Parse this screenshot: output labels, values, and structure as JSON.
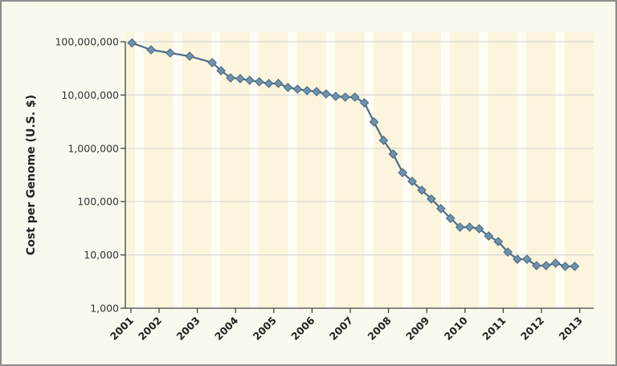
{
  "chart_data": {
    "type": "line",
    "title": "",
    "xlabel": "",
    "ylabel": "Cost per Genome (U.S. $)",
    "yscale": "log",
    "ylim": [
      1000,
      100000000
    ],
    "xlim": [
      2001,
      2013.35
    ],
    "yticks": [
      1000,
      10000,
      100000,
      1000000,
      10000000,
      100000000
    ],
    "ytick_labels": [
      "1,000",
      "10,000",
      "100,000",
      "1,000,000",
      "10,000,000",
      "100,000,000"
    ],
    "xticks": [
      "2001",
      "2002",
      "2003",
      "2004",
      "2005",
      "2006",
      "2007",
      "2008",
      "2009",
      "2010",
      "2011",
      "2012",
      "2013"
    ],
    "grid": "horizontal",
    "background": "alternating pale-yellow and white vertical bands",
    "series": [
      {
        "color": "#4f6e86",
        "marker": "diamond",
        "marker_color": "#6f93ad",
        "x": [
          2001.29,
          2001.79,
          2002.29,
          2002.8,
          2003.39,
          2003.62,
          2003.87,
          2004.12,
          2004.37,
          2004.62,
          2004.87,
          2005.12,
          2005.37,
          2005.62,
          2005.87,
          2006.12,
          2006.37,
          2006.62,
          2006.87,
          2007.12,
          2007.37,
          2007.62,
          2007.87,
          2008.12,
          2008.37,
          2008.62,
          2008.87,
          2009.12,
          2009.37,
          2009.62,
          2009.87,
          2010.12,
          2010.37,
          2010.62,
          2010.87,
          2011.12,
          2011.37,
          2011.62,
          2011.87,
          2012.12,
          2012.37,
          2012.62,
          2012.87
        ],
        "values": [
          95000000,
          70600000,
          61500000,
          53500000,
          40600000,
          28700000,
          21000000,
          20300000,
          18900000,
          17700000,
          16500000,
          16500000,
          13900000,
          12900000,
          12100000,
          11600000,
          10500000,
          9460000,
          9140000,
          9140000,
          7160000,
          3120000,
          1410000,
          780000,
          351000,
          240000,
          164000,
          112000,
          74000,
          48600,
          33200,
          33200,
          31000,
          22600,
          17800,
          11300,
          8300,
          8300,
          6300,
          6300,
          7000,
          6100,
          6100
        ]
      }
    ]
  }
}
